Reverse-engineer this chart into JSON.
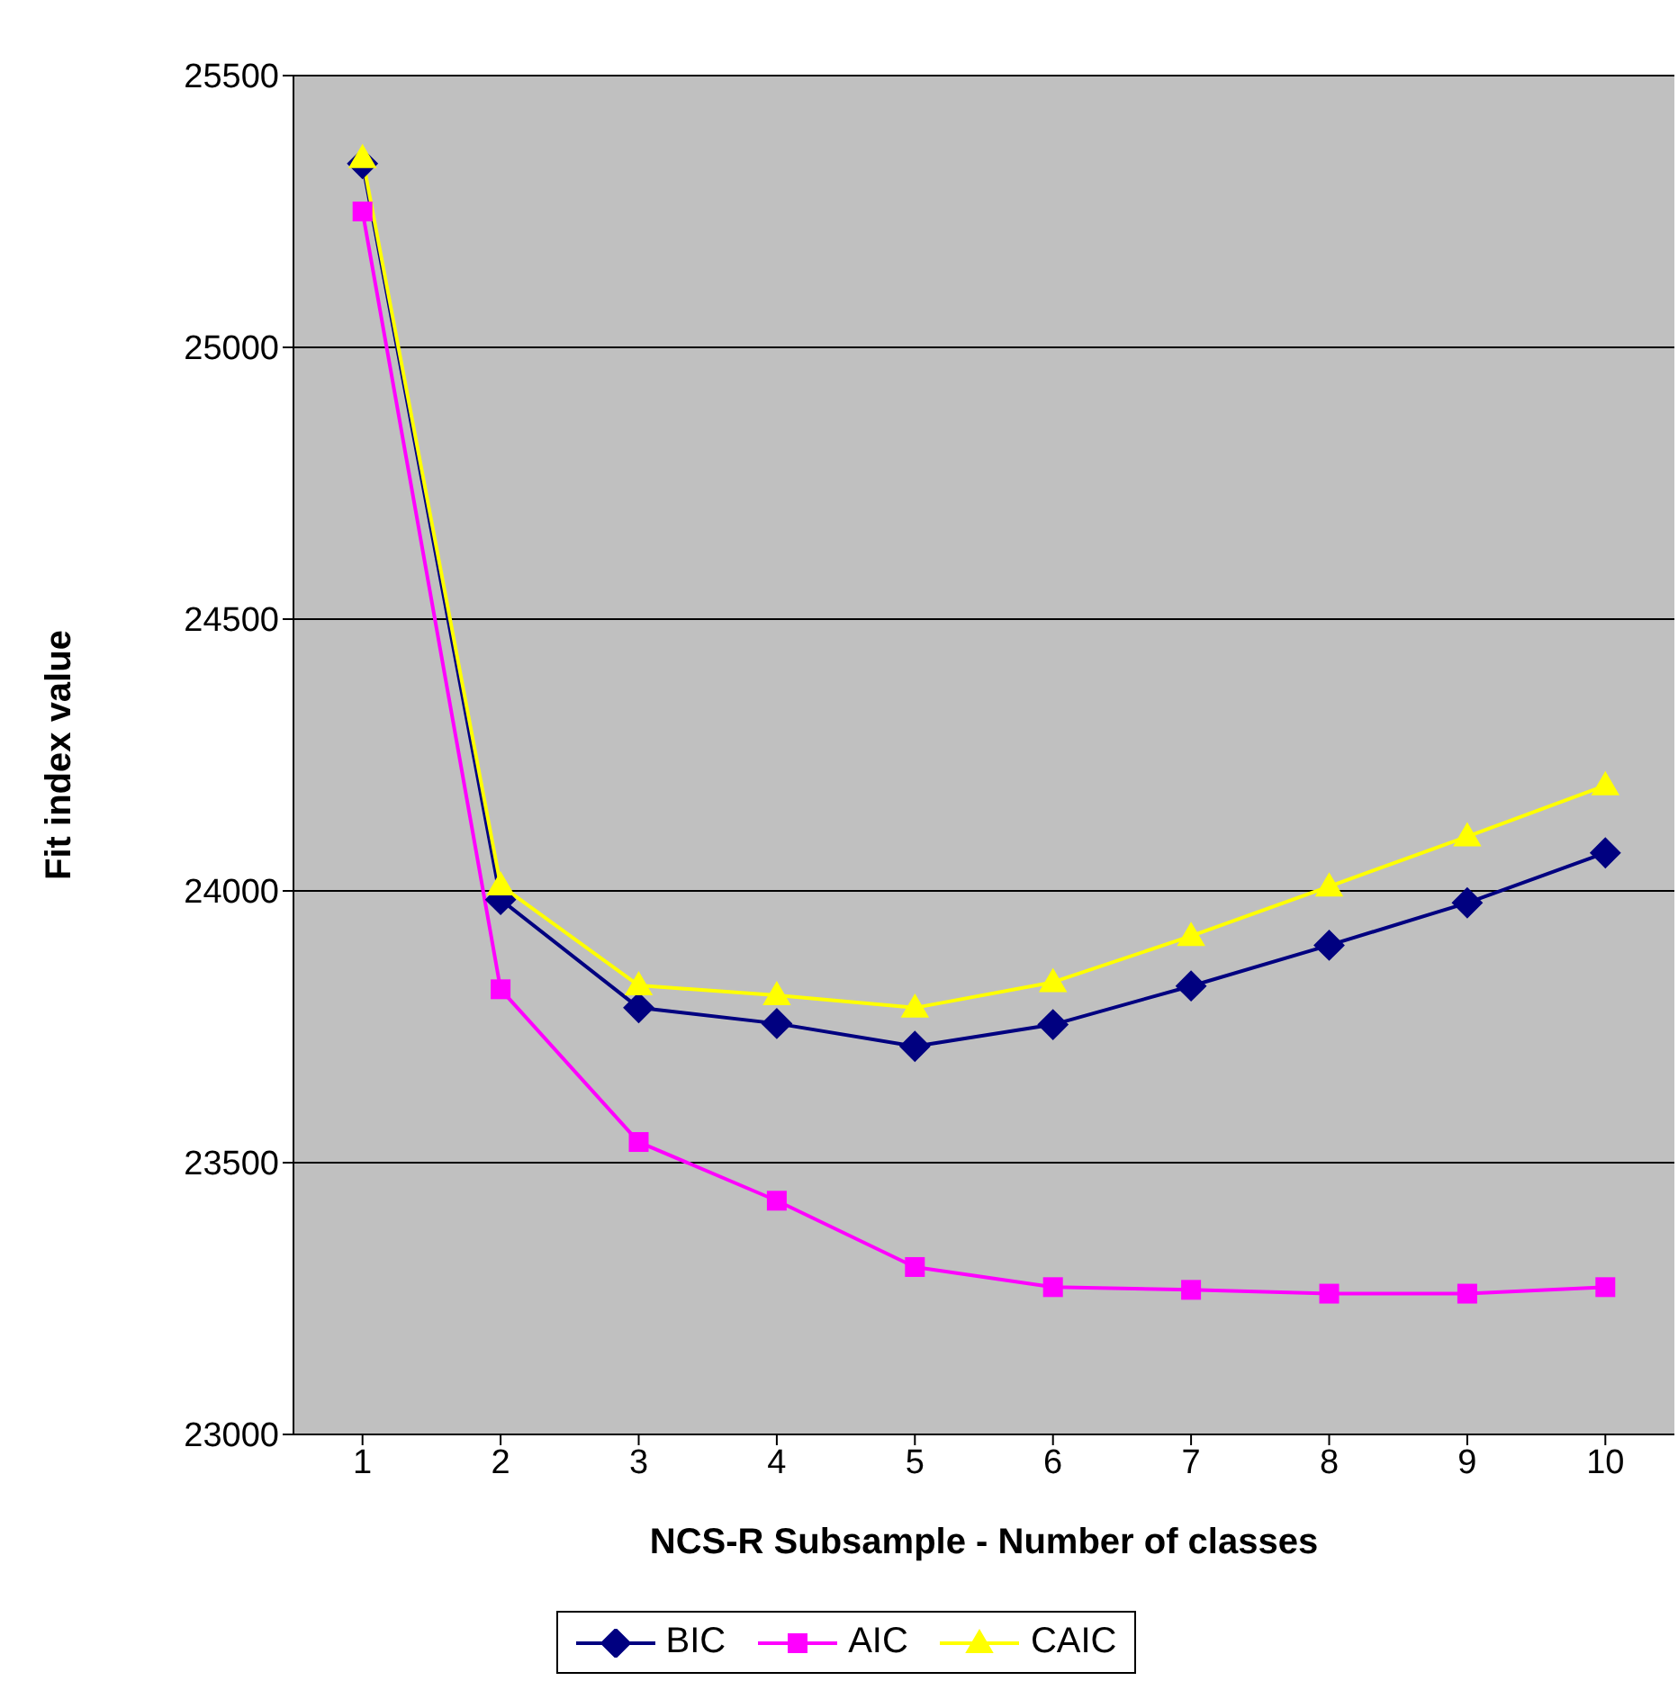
{
  "chart_data": {
    "type": "line",
    "xlabel": "NCS-R Subsample - Number of classes",
    "ylabel": "Fit index value",
    "categories": [
      "1",
      "2",
      "3",
      "4",
      "5",
      "6",
      "7",
      "8",
      "9",
      "10"
    ],
    "series": [
      {
        "name": "BIC",
        "color": "#000080",
        "marker": "diamond",
        "values": [
          25338,
          23984,
          23785,
          23756,
          23714,
          23754,
          23825,
          23900,
          23978,
          24070
        ]
      },
      {
        "name": "AIC",
        "color": "#ff00ff",
        "marker": "square",
        "values": [
          25250,
          23819,
          23538,
          23430,
          23308,
          23271,
          23266,
          23259,
          23259,
          23271
        ]
      },
      {
        "name": "CAIC",
        "color": "#ffff00",
        "marker": "triangle",
        "values": [
          25348,
          24010,
          23826,
          23808,
          23785,
          23832,
          23917,
          24008,
          24100,
          24194
        ]
      }
    ],
    "ylim": [
      23000,
      25500
    ],
    "yticks": [
      23000,
      23500,
      24000,
      24500,
      25000,
      25500
    ],
    "grid": "y",
    "legend": "bottom"
  }
}
